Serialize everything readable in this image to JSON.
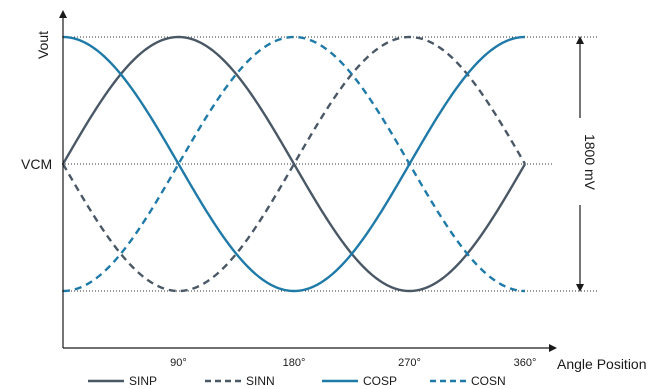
{
  "chart_data": {
    "type": "line",
    "title": "",
    "xlabel": "Angle Position",
    "ylabel": "Vout",
    "x_ticks": [
      "90°",
      "180°",
      "270°",
      "360°"
    ],
    "xlim": [
      0,
      360
    ],
    "ylim": [
      -1,
      1
    ],
    "y_labels": {
      "mid": "VCM"
    },
    "amplitude_annotation": "1800 mV",
    "series": [
      {
        "name": "SINP",
        "function": "sin",
        "style": "solid",
        "color": "#4a5866"
      },
      {
        "name": "SINN",
        "function": "-sin",
        "style": "dashed",
        "color": "#4a5866"
      },
      {
        "name": "COSP",
        "function": "cos",
        "style": "solid",
        "color": "#1f7aa8"
      },
      {
        "name": "COSN",
        "function": "-cos",
        "style": "dashed",
        "color": "#1f7aa8"
      }
    ]
  }
}
